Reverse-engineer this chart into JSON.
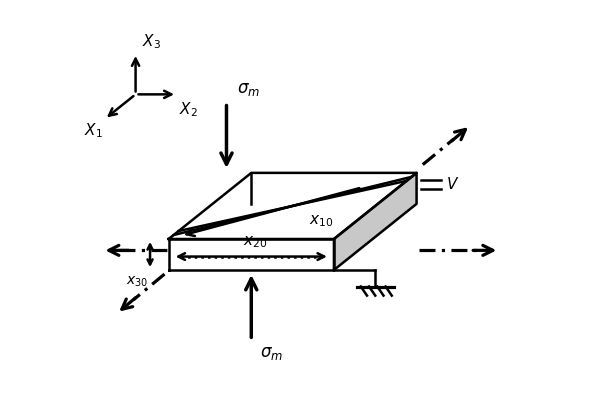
{
  "bg_color": "#ffffff",
  "box_edge": "#000000",
  "side_color": "#c8c8c8",
  "lw": 1.8,
  "hlw": 2.5,
  "font_size": 11,
  "sub_font_size": 10,
  "bx": 0.17,
  "by": 0.35,
  "bw": 0.4,
  "bh": 0.075,
  "ddx": 0.2,
  "ddy": 0.16
}
